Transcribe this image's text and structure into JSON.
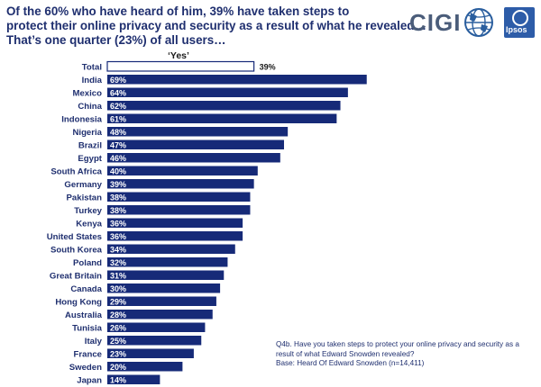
{
  "headline": {
    "line1": "Of the 60% who have heard of him, 39% have taken steps to",
    "line2": "protect their online privacy and security as a result of what he revealed…",
    "line3": "That’s one quarter (23%) of all users…"
  },
  "logos": {
    "cigi": "CIGI",
    "ipsos": "Ipsos"
  },
  "chart_data": {
    "type": "bar",
    "orientation": "horizontal",
    "column_header": "‘Yes’",
    "categories": [
      "Total",
      "India",
      "Mexico",
      "China",
      "Indonesia",
      "Nigeria",
      "Brazil",
      "Egypt",
      "South Africa",
      "Germany",
      "Pakistan",
      "Turkey",
      "Kenya",
      "United States",
      "South Korea",
      "Poland",
      "Great Britain",
      "Canada",
      "Hong Kong",
      "Australia",
      "Tunisia",
      "Italy",
      "France",
      "Sweden",
      "Japan"
    ],
    "values": [
      39,
      69,
      64,
      62,
      61,
      48,
      47,
      46,
      40,
      39,
      38,
      38,
      36,
      36,
      34,
      32,
      31,
      30,
      29,
      28,
      26,
      25,
      23,
      20,
      14
    ],
    "labels": [
      "39%",
      "69%",
      "64%",
      "62%",
      "61%",
      "48%",
      "47%",
      "46%",
      "40%",
      "39%",
      "38%",
      "38%",
      "36%",
      "36%",
      "34%",
      "32%",
      "31%",
      "30%",
      "29%",
      "28%",
      "26%",
      "25%",
      "23%",
      "20%",
      "14%"
    ],
    "xlim": [
      0,
      100
    ],
    "grid": false,
    "colors": {
      "bar": "#162a78",
      "total_fill": "#ffffff",
      "total_stroke": "#162a78",
      "label_inside": "#ffffff",
      "label_outside": "#1a1a1a",
      "category": "#1f2f6f"
    }
  },
  "footnote": {
    "line1": "Q4b. Have you taken steps to protect your online privacy and security as a",
    "line2": "result of what Edward Snowden revealed?",
    "line3": "Base: Heard Of Edward Snowden (n=14,411)"
  }
}
